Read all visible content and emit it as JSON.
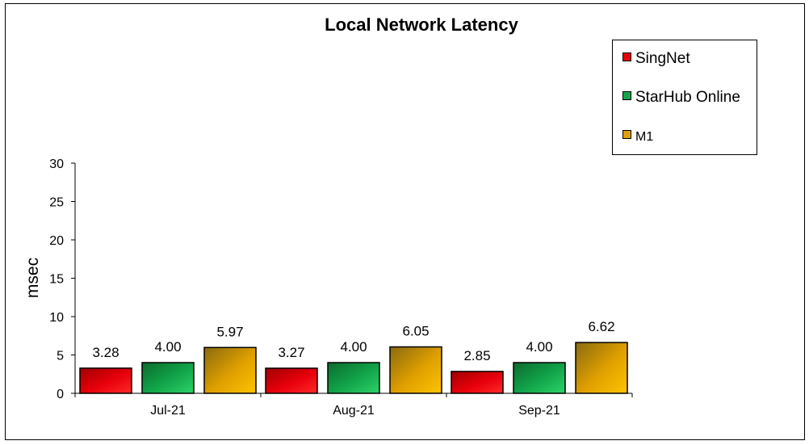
{
  "chart_data": {
    "type": "bar",
    "title": "Local Network Latency",
    "xlabel": "",
    "ylabel": "msec",
    "ylim": [
      0,
      30
    ],
    "yticks": [
      0,
      5,
      10,
      15,
      20,
      25,
      30
    ],
    "categories": [
      "Jul-21",
      "Aug-21",
      "Sep-21"
    ],
    "series": [
      {
        "name": "SingNet",
        "values": [
          3.28,
          3.27,
          2.85
        ],
        "labels": [
          "3.28",
          "3.27",
          "2.85"
        ],
        "color": "#e8000b",
        "colorLight": "#ff2a2a",
        "colorDark": "#a00000"
      },
      {
        "name": "StarHub Online",
        "values": [
          4.0,
          4.0,
          4.0
        ],
        "labels": [
          "4.00",
          "4.00",
          "4.00"
        ],
        "color": "#12a54a",
        "colorLight": "#2ed36a",
        "colorDark": "#0b6b2e"
      },
      {
        "name": "M1",
        "values": [
          5.97,
          6.05,
          6.62
        ],
        "labels": [
          "5.97",
          "6.05",
          "6.62"
        ],
        "color": "#e0a000",
        "colorLight": "#ffc400",
        "colorDark": "#8a6a10"
      }
    ],
    "legend_position": "top-right",
    "grid": false
  }
}
